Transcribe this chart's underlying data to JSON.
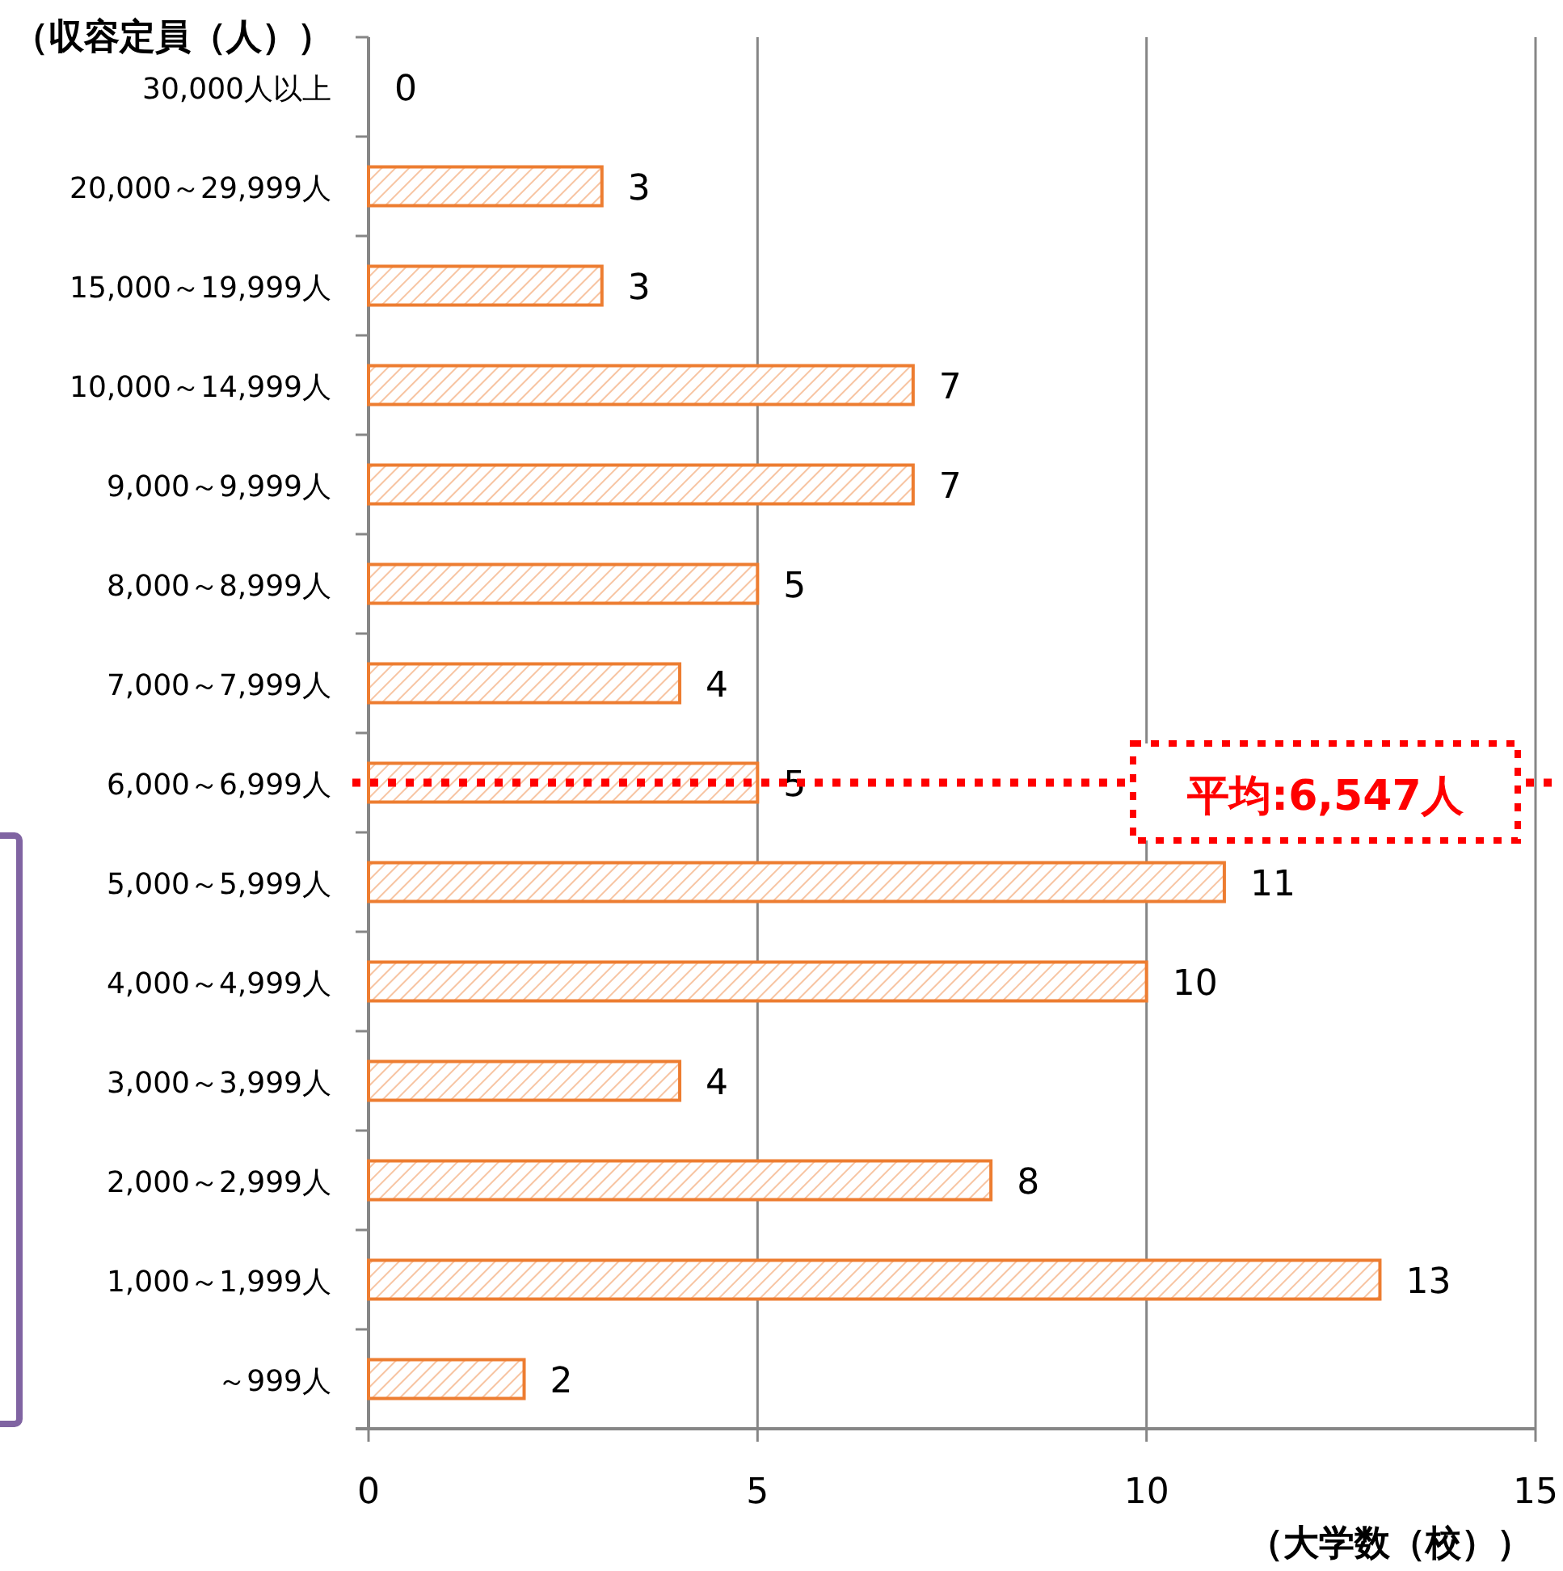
{
  "chart_data": {
    "type": "bar",
    "orientation": "horizontal",
    "ylabel": "（収容定員（人））",
    "xlabel": "（大学数（校））",
    "categories": [
      "30,000人以上",
      "20,000～29,999人",
      "15,000～19,999人",
      "10,000～14,999人",
      "9,000～9,999人",
      "8,000～8,999人",
      "7,000～7,999人",
      "6,000～6,999人",
      "5,000～5,999人",
      "4,000～4,999人",
      "3,000～3,999人",
      "2,000～2,999人",
      "1,000～1,999人",
      "～999人"
    ],
    "values": [
      0,
      3,
      3,
      7,
      7,
      5,
      4,
      5,
      11,
      10,
      4,
      8,
      13,
      2
    ],
    "color": "#ed7d31",
    "xlim": [
      0,
      15
    ],
    "xticks": [
      0,
      5,
      10,
      15
    ],
    "grid": "x",
    "data_labels": true,
    "ref_lines": [
      {
        "axis": "y",
        "value": "6,000～6,999人",
        "label": "平均:6,547人",
        "color": "#ff0000",
        "line_style": "dotted"
      }
    ]
  }
}
